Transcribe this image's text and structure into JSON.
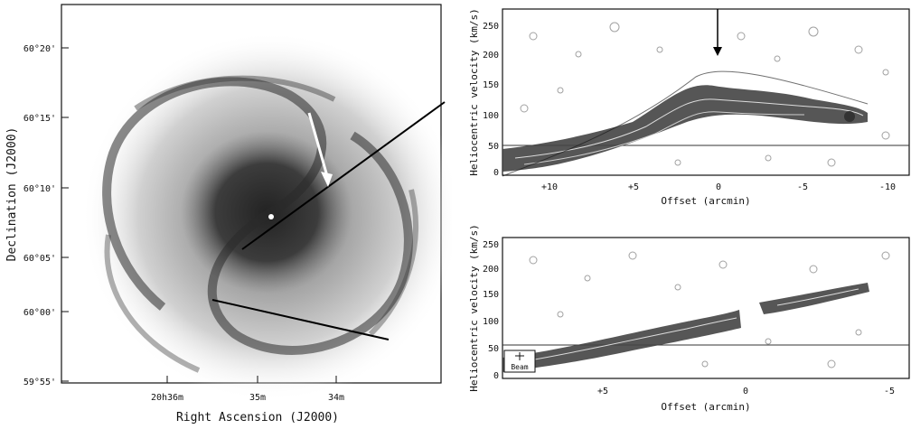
{
  "left_image": {
    "ylabel": "Declination (J2000)",
    "xlabel": "Right Ascension (J2000)",
    "dec_ticks": [
      "60°20'",
      "60°15'",
      "60°10'",
      "60°05'",
      "60°00'",
      "59°55'"
    ],
    "ra_ticks": [
      "20h36m",
      "35m",
      "34m"
    ]
  },
  "top_pv": {
    "ylabel": "Heliocentric velocity (km/s)",
    "xlabel": "Offset (arcmin)",
    "yticks": [
      "0",
      "50",
      "100",
      "150",
      "200",
      "250"
    ],
    "xticks": [
      "+10",
      "+5",
      "0",
      "-5",
      "-10"
    ]
  },
  "bottom_pv": {
    "ylabel": "Heliocentric velocity (km/s)",
    "xlabel": "Offset (arcmin)",
    "yticks": [
      "0",
      "50",
      "100",
      "150",
      "200",
      "250"
    ],
    "xticks": [
      "+5",
      "0",
      "-5"
    ],
    "beam_label": "Beam"
  }
}
